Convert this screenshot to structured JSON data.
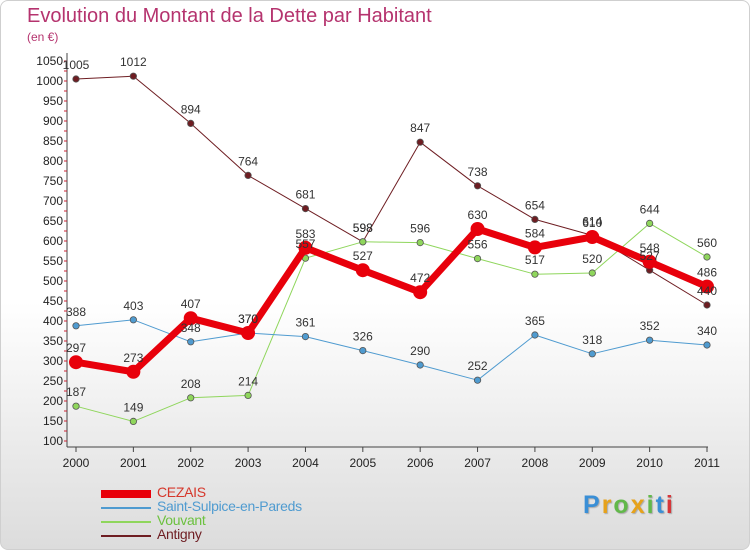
{
  "header": {
    "title": "Evolution du Montant de la Dette par Habitant",
    "unit": "(en €)"
  },
  "logo": {
    "text": "Proxiti"
  },
  "chart_data": {
    "type": "line",
    "title": "Evolution du Montant de la Dette par Habitant",
    "subtitle": "(en €)",
    "x": [
      "2000",
      "2001",
      "2002",
      "2003",
      "2004",
      "2005",
      "2006",
      "2007",
      "2008",
      "2009",
      "2010",
      "2011"
    ],
    "ylim": [
      100,
      1050
    ],
    "yticks": [
      100,
      150,
      200,
      250,
      300,
      350,
      400,
      450,
      500,
      550,
      600,
      650,
      700,
      750,
      800,
      850,
      900,
      950,
      1000,
      1050
    ],
    "grid": false,
    "legend_position": "bottom-left",
    "series": [
      {
        "name": "CEZAIS",
        "color": "#e8000b",
        "values": [
          297,
          273,
          407,
          370,
          583,
          527,
          472,
          630,
          584,
          610,
          548,
          486
        ]
      },
      {
        "name": "Saint-Sulpice-en-Pareds",
        "color": "#4f9bd0",
        "values": [
          388,
          403,
          348,
          370,
          361,
          326,
          290,
          252,
          365,
          318,
          352,
          340
        ]
      },
      {
        "name": "Vouvant",
        "color": "#8fd65c",
        "values": [
          187,
          149,
          208,
          214,
          557,
          598,
          596,
          556,
          517,
          520,
          644,
          560
        ]
      },
      {
        "name": "Antigny",
        "color": "#6e1d22",
        "values": [
          1005,
          1012,
          894,
          764,
          681,
          598,
          847,
          738,
          654,
          614,
          527,
          440
        ]
      }
    ]
  }
}
